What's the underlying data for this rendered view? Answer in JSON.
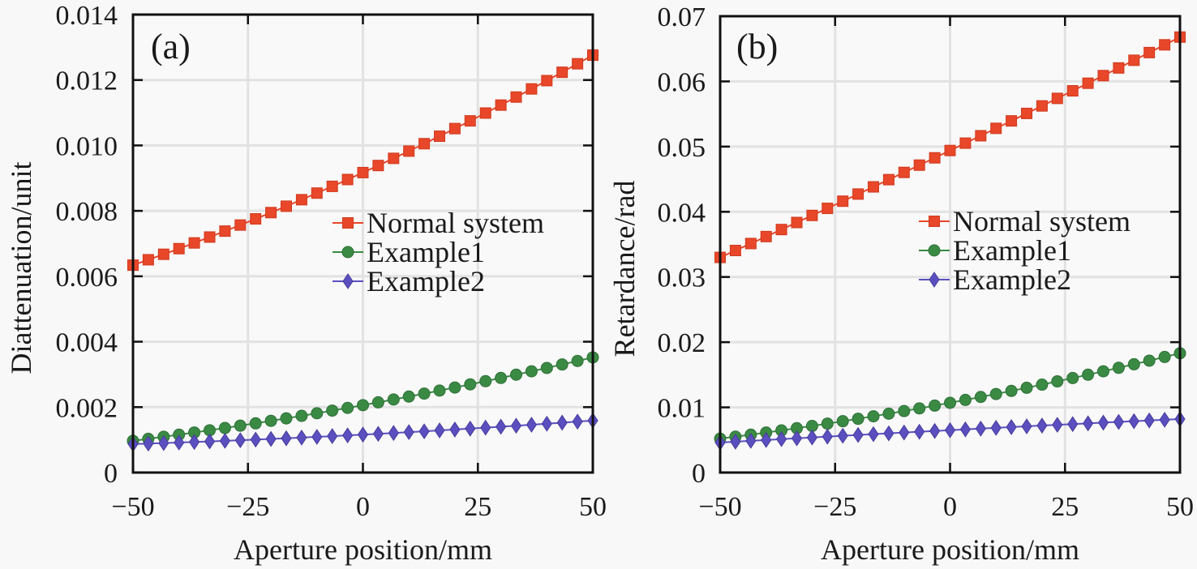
{
  "chart_data": [
    {
      "type": "line",
      "panel_label": "(a)",
      "title": "",
      "xlabel": "Aperture position/mm",
      "ylabel": "Diattenuation/unit",
      "xlim": [
        -50,
        50
      ],
      "ylim": [
        0,
        0.014
      ],
      "xticks": [
        -50,
        -25,
        0,
        25,
        50
      ],
      "xtick_labels": [
        "−50",
        "−25",
        "0",
        "25",
        "50"
      ],
      "yticks": [
        0,
        0.002,
        0.004,
        0.006,
        0.008,
        0.01,
        0.012,
        0.014
      ],
      "ytick_labels": [
        "0",
        "0.002",
        "0.004",
        "0.006",
        "0.008",
        "0.010",
        "0.012",
        "0.014"
      ],
      "grid": true,
      "legend_position": "center-right",
      "x": [
        -50,
        -46.67,
        -43.33,
        -40,
        -36.67,
        -33.33,
        -30,
        -26.67,
        -23.33,
        -20,
        -16.67,
        -13.33,
        -10,
        -6.67,
        -3.33,
        0,
        3.33,
        6.67,
        10,
        13.33,
        16.67,
        20,
        23.33,
        26.67,
        30,
        33.33,
        36.67,
        40,
        43.33,
        46.67,
        50
      ],
      "series": [
        {
          "name": "Normal system",
          "marker": "square",
          "color": "#e8472a",
          "values": [
            0.00634,
            0.006505,
            0.006673,
            0.006845,
            0.00702,
            0.007199,
            0.007381,
            0.007566,
            0.007755,
            0.007947,
            0.008142,
            0.008341,
            0.008543,
            0.008749,
            0.008958,
            0.00917,
            0.009386,
            0.009605,
            0.009827,
            0.010053,
            0.010282,
            0.010515,
            0.010751,
            0.01099,
            0.011233,
            0.011479,
            0.011728,
            0.011981,
            0.012237,
            0.012497,
            0.01276
          ]
        },
        {
          "name": "Example1",
          "marker": "circle",
          "color": "#3a8a44",
          "values": [
            0.00097,
            0.001031,
            0.001094,
            0.001158,
            0.001225,
            0.001292,
            0.001362,
            0.001433,
            0.001505,
            0.00158,
            0.001656,
            0.001733,
            0.001812,
            0.001893,
            0.001976,
            0.00206,
            0.002146,
            0.002233,
            0.002322,
            0.002413,
            0.002506,
            0.0026,
            0.002695,
            0.002793,
            0.002892,
            0.002992,
            0.003095,
            0.003198,
            0.003304,
            0.003411,
            0.00352
          ]
        },
        {
          "name": "Example2",
          "marker": "diamond",
          "color": "#5b4fc0",
          "values": [
            0.00087,
            0.000885,
            0.000901,
            0.000917,
            0.000934,
            0.000951,
            0.000969,
            0.000988,
            0.001007,
            0.001027,
            0.001048,
            0.001069,
            0.001091,
            0.001113,
            0.001136,
            0.00116,
            0.001184,
            0.001209,
            0.001235,
            0.001261,
            0.001288,
            0.001315,
            0.001343,
            0.001372,
            0.001401,
            0.001431,
            0.001462,
            0.001493,
            0.001525,
            0.001557,
            0.00159
          ]
        }
      ]
    },
    {
      "type": "line",
      "panel_label": "(b)",
      "title": "",
      "xlabel": "Aperture position/mm",
      "ylabel": "Retardance/rad",
      "xlim": [
        -50,
        50
      ],
      "ylim": [
        0,
        0.07
      ],
      "xticks": [
        -50,
        -25,
        0,
        25,
        50
      ],
      "xtick_labels": [
        "−50",
        "−25",
        "0",
        "25",
        "50"
      ],
      "yticks": [
        0,
        0.01,
        0.02,
        0.03,
        0.04,
        0.05,
        0.06,
        0.07
      ],
      "ytick_labels": [
        "0",
        "0.01",
        "0.02",
        "0.03",
        "0.04",
        "0.05",
        "0.06",
        "0.07"
      ],
      "grid": true,
      "legend_position": "center-right",
      "x": [
        -50,
        -46.67,
        -43.33,
        -40,
        -36.67,
        -33.33,
        -30,
        -26.67,
        -23.33,
        -20,
        -16.67,
        -13.33,
        -10,
        -6.67,
        -3.33,
        0,
        3.33,
        6.67,
        10,
        13.33,
        16.67,
        20,
        23.33,
        26.67,
        30,
        33.33,
        36.67,
        40,
        43.33,
        46.67,
        50
      ],
      "series": [
        {
          "name": "Normal system",
          "marker": "square",
          "color": "#e8472a",
          "values": [
            0.033,
            0.034062,
            0.03513,
            0.0362,
            0.037275,
            0.038356,
            0.03944,
            0.040528,
            0.041623,
            0.04272,
            0.043822,
            0.04493,
            0.04604,
            0.047155,
            0.048276,
            0.0494,
            0.050528,
            0.051663,
            0.0528,
            0.053942,
            0.05509,
            0.05624,
            0.057395,
            0.058556,
            0.05972,
            0.060888,
            0.062063,
            0.06324,
            0.064422,
            0.06561,
            0.0668
          ]
        },
        {
          "name": "Example1",
          "marker": "circle",
          "color": "#3a8a44",
          "values": [
            0.0052,
            0.005501,
            0.005813,
            0.006132,
            0.006461,
            0.006801,
            0.007148,
            0.007505,
            0.007873,
            0.008248,
            0.008633,
            0.009029,
            0.009432,
            0.009845,
            0.010269,
            0.0107,
            0.011141,
            0.011593,
            0.012052,
            0.012521,
            0.013001,
            0.013488,
            0.013985,
            0.014493,
            0.015008,
            0.015533,
            0.016069,
            0.016612,
            0.017165,
            0.017729,
            0.0183
          ]
        },
        {
          "name": "Example2",
          "marker": "diamond",
          "color": "#5b4fc0",
          "values": [
            0.0046,
            0.004733,
            0.004865,
            0.004996,
            0.005126,
            0.005256,
            0.005384,
            0.005512,
            0.005638,
            0.005764,
            0.005889,
            0.006013,
            0.006136,
            0.006258,
            0.00638,
            0.0065,
            0.006619,
            0.006738,
            0.006856,
            0.006973,
            0.007089,
            0.007204,
            0.007318,
            0.007432,
            0.007544,
            0.007656,
            0.007766,
            0.007876,
            0.007985,
            0.008093,
            0.0082
          ]
        }
      ]
    }
  ]
}
